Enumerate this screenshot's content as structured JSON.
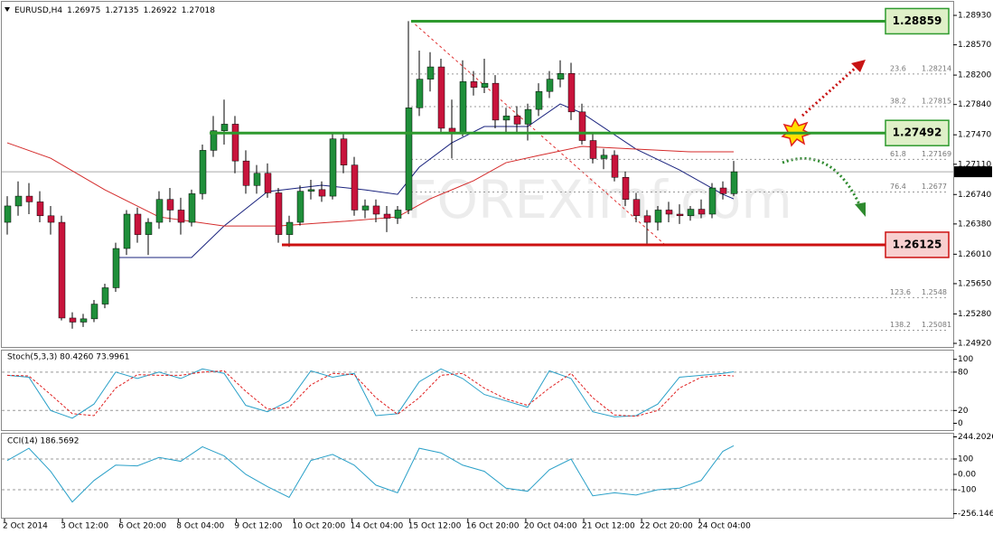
{
  "chart_data": {
    "type": "candlestick",
    "symbol": "EURUSD,H4",
    "ohlc_header": [
      1.26975,
      1.27135,
      1.26922,
      1.27018
    ],
    "open": [
      1.264,
      1.266,
      1.2672,
      1.2665,
      1.2648,
      1.264,
      1.2523,
      1.2518,
      1.2522,
      1.254,
      1.256,
      1.2608,
      1.265,
      1.2625,
      1.264,
      1.2668,
      1.2655,
      1.264,
      1.2675,
      1.2728,
      1.2752,
      1.276,
      1.2715,
      1.2685,
      1.27,
      1.2676,
      1.2625,
      1.264,
      1.2678,
      1.268,
      1.2672,
      1.2742,
      1.271,
      1.2655,
      1.266,
      1.265,
      1.2645,
      1.2655,
      1.278,
      1.2815,
      1.283,
      1.2755,
      1.275,
      1.2812,
      1.2805,
      1.281,
      1.2765,
      1.277,
      1.276,
      1.2778,
      1.28,
      1.2815,
      1.2822,
      1.2775,
      1.274,
      1.2718,
      1.2722,
      1.2695,
      1.2668,
      1.2648,
      1.264,
      1.2655,
      1.265,
      1.2648,
      1.2656,
      1.265,
      1.2682,
      1.2675
    ],
    "high": [
      1.2672,
      1.269,
      1.2688,
      1.2678,
      1.266,
      1.2648,
      1.253,
      1.2528,
      1.2545,
      1.2565,
      1.2615,
      1.2655,
      1.2658,
      1.2645,
      1.2678,
      1.2682,
      1.267,
      1.268,
      1.2735,
      1.277,
      1.279,
      1.277,
      1.2728,
      1.271,
      1.2712,
      1.2682,
      1.2648,
      1.2685,
      1.2692,
      1.269,
      1.275,
      1.2748,
      1.272,
      1.2668,
      1.2668,
      1.266,
      1.266,
      1.2886,
      1.285,
      1.2848,
      1.284,
      1.279,
      1.2838,
      1.2825,
      1.284,
      1.282,
      1.278,
      1.2782,
      1.2785,
      1.281,
      1.2825,
      1.2838,
      1.2835,
      1.2785,
      1.2748,
      1.273,
      1.2728,
      1.2702,
      1.2676,
      1.2655,
      1.266,
      1.2665,
      1.2662,
      1.266,
      1.2668,
      1.2688,
      1.269,
      1.2715
    ],
    "low": [
      1.2625,
      1.2648,
      1.265,
      1.264,
      1.2625,
      1.252,
      1.251,
      1.2512,
      1.2518,
      1.2535,
      1.2555,
      1.26,
      1.2615,
      1.26,
      1.2632,
      1.264,
      1.2625,
      1.2635,
      1.2668,
      1.272,
      1.2735,
      1.27,
      1.2675,
      1.2675,
      1.267,
      1.2615,
      1.261,
      1.2636,
      1.2668,
      1.2665,
      1.2668,
      1.27,
      1.2648,
      1.2645,
      1.264,
      1.2628,
      1.2638,
      1.265,
      1.277,
      1.28,
      1.2748,
      1.2718,
      1.2745,
      1.2795,
      1.2798,
      1.2755,
      1.275,
      1.2748,
      1.274,
      1.277,
      1.2792,
      1.2805,
      1.2765,
      1.2735,
      1.2712,
      1.2705,
      1.269,
      1.266,
      1.264,
      1.2612,
      1.263,
      1.264,
      1.2638,
      1.2642,
      1.2645,
      1.2645,
      1.2668,
      1.2672
    ],
    "close": [
      1.266,
      1.2672,
      1.2665,
      1.2648,
      1.264,
      1.2523,
      1.2518,
      1.2522,
      1.254,
      1.256,
      1.2608,
      1.265,
      1.2625,
      1.264,
      1.2668,
      1.2655,
      1.264,
      1.2675,
      1.2728,
      1.2752,
      1.276,
      1.2715,
      1.2685,
      1.27,
      1.2676,
      1.2625,
      1.264,
      1.2678,
      1.268,
      1.2672,
      1.2742,
      1.271,
      1.2655,
      1.266,
      1.265,
      1.2645,
      1.2655,
      1.278,
      1.2815,
      1.283,
      1.2755,
      1.275,
      1.2812,
      1.2805,
      1.281,
      1.2765,
      1.277,
      1.276,
      1.2778,
      1.28,
      1.2815,
      1.2822,
      1.2775,
      1.274,
      1.2718,
      1.2722,
      1.2695,
      1.2668,
      1.2648,
      1.264,
      1.2655,
      1.265,
      1.2648,
      1.2656,
      1.265,
      1.2682,
      1.2675,
      1.27018
    ],
    "bull_color": "#1f8f3a",
    "bear_color": "#c8143c",
    "ylim": [
      1.24865,
      1.29118
    ],
    "yticks": [
      {
        "value": 1.2893,
        "label": "1.28930"
      },
      {
        "value": 1.2857,
        "label": "1.28570"
      },
      {
        "value": 1.282,
        "label": "1.28200"
      },
      {
        "value": 1.2784,
        "label": "1.27840"
      },
      {
        "value": 1.2747,
        "label": "1.27470"
      },
      {
        "value": 1.2711,
        "label": "1.27110"
      },
      {
        "value": 1.2674,
        "label": "1.26740"
      },
      {
        "value": 1.2638,
        "label": "1.26380"
      },
      {
        "value": 1.2601,
        "label": "1.26010"
      },
      {
        "value": 1.2565,
        "label": "1.25650"
      },
      {
        "value": 1.2528,
        "label": "1.25280"
      },
      {
        "value": 1.2492,
        "label": "1.24920"
      }
    ],
    "current_price": 1.27018,
    "ma": [
      {
        "color": "#1a237e",
        "x": [
          10,
          17,
          20,
          24,
          29,
          33,
          36,
          38,
          41,
          44,
          48,
          51,
          53,
          58,
          62,
          66,
          67
        ],
        "values": [
          1.25969,
          1.2597,
          1.26355,
          1.26775,
          1.26853,
          1.26797,
          1.26742,
          1.27074,
          1.27372,
          1.27571,
          1.27571,
          1.27847,
          1.27737,
          1.27295,
          1.2704,
          1.26742,
          1.26687
        ]
      },
      {
        "color": "#d42a2a",
        "x": [
          0,
          4,
          9,
          14,
          20,
          25,
          31,
          36,
          39,
          43,
          46,
          49,
          53,
          58,
          63,
          67
        ],
        "values": [
          1.27372,
          1.27184,
          1.26797,
          1.26466,
          1.26355,
          1.26355,
          1.26411,
          1.26466,
          1.26687,
          1.26908,
          1.27129,
          1.27217,
          1.27328,
          1.27295,
          1.27262,
          1.27262
        ]
      }
    ],
    "levels": [
      {
        "value": 1.28859,
        "color": "#2e9a2e"
      },
      {
        "value": 1.27492,
        "color": "#2e9a2e"
      },
      {
        "value": 1.26125,
        "color": "#cc1111"
      }
    ],
    "fibs": [
      {
        "level": 23.6,
        "price": 1.28214
      },
      {
        "level": 38.2,
        "price": 1.27815
      },
      {
        "level": 61.8,
        "price": 1.27169
      },
      {
        "level": 76.4,
        "price": 1.2677
      },
      {
        "level": 123.6,
        "price": 1.2548
      },
      {
        "level": 138.2,
        "price": 1.25081
      }
    ],
    "watermark": "FOREXimf.com",
    "x_labels": [
      "2 Oct 2014",
      "3 Oct 12:00",
      "6 Oct 20:00",
      "8 Oct 04:00",
      "9 Oct 12:00",
      "10 Oct 20:00",
      "14 Oct 04:00",
      "15 Oct 12:00",
      "16 Oct 20:00",
      "20 Oct 04:00",
      "21 Oct 12:00",
      "22 Oct 20:00",
      "24 Oct 04:00"
    ],
    "panels": [
      {
        "type": "line",
        "title": "Stoch(5,3,3) 80.4260 73.9961",
        "ylim": [
          -5,
          108
        ],
        "yticks": [
          100,
          80,
          20,
          0
        ],
        "levels": [
          80,
          20
        ],
        "x": [
          0,
          2,
          4,
          6,
          8,
          10,
          12,
          14,
          16,
          18,
          20,
          22,
          24,
          26,
          28,
          30,
          32,
          34,
          36,
          38,
          40,
          42,
          44,
          46,
          48,
          50,
          52,
          54,
          56,
          58,
          60,
          62,
          64,
          66,
          67
        ],
        "series": [
          {
            "color": "#2aa0c8",
            "values": [
              75,
              72,
              20,
              8,
              30,
              80,
              70,
              80,
              70,
              85,
              78,
              28,
              18,
              35,
              82,
              72,
              78,
              12,
              15,
              65,
              85,
              70,
              45,
              35,
              25,
              82,
              70,
              18,
              10,
              12,
              30,
              72,
              75,
              78,
              80.426
            ]
          },
          {
            "color": "#e02020",
            "dashed": true,
            "values": [
              75,
              74,
              45,
              15,
              12,
              55,
              76,
              75,
              75,
              80,
              82,
              50,
              22,
              25,
              60,
              78,
              76,
              40,
              14,
              40,
              75,
              78,
              55,
              38,
              28,
              55,
              78,
              40,
              13,
              11,
              20,
              55,
              72,
              75,
              73.9961
            ]
          }
        ]
      },
      {
        "type": "line",
        "title": "CCI(14) 186.5692",
        "ylim": [
          -256.1461,
          244.2026
        ],
        "yticks": [
          244.2026,
          100,
          {
            "value": 0,
            "label": "0.00"
          },
          -100,
          -256.1461
        ],
        "levels": [
          100,
          -100
        ],
        "x": [
          0,
          2,
          4,
          6,
          8,
          10,
          12,
          14,
          16,
          18,
          20,
          22,
          24,
          26,
          28,
          30,
          32,
          34,
          36,
          38,
          40,
          42,
          44,
          46,
          48,
          50,
          52,
          54,
          56,
          58,
          60,
          62,
          64,
          66,
          67
        ],
        "series": [
          {
            "color": "#2aa0c8",
            "values": [
              90,
              170,
              20,
              -180,
              -40,
              60,
              55,
              110,
              85,
              180,
              120,
              0,
              -80,
              -150,
              90,
              130,
              60,
              -70,
              -120,
              170,
              140,
              60,
              20,
              -90,
              -110,
              30,
              100,
              -140,
              -120,
              -135,
              -100,
              -90,
              -40,
              150,
              186.5692
            ]
          }
        ]
      }
    ]
  }
}
